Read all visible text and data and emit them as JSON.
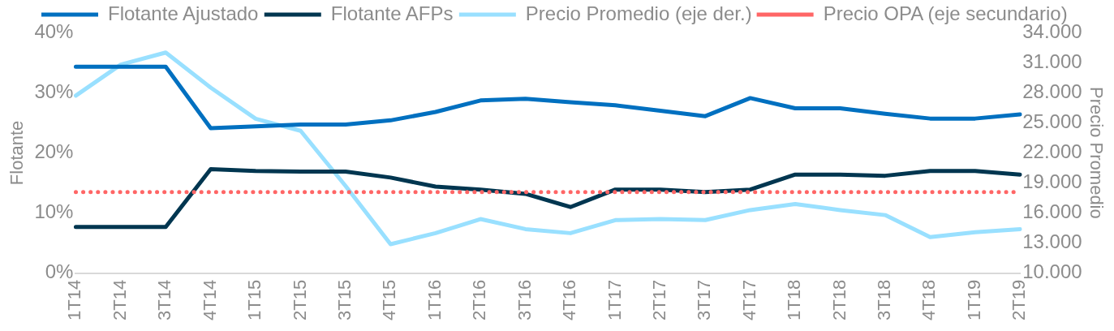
{
  "chart_data": {
    "type": "line",
    "ylabel": "Flotante",
    "y2label": "Precio Promedio",
    "categories": [
      "1T14",
      "2T14",
      "3T14",
      "4T14",
      "1T15",
      "2T15",
      "3T15",
      "4T15",
      "1T16",
      "2T16",
      "3T16",
      "4T16",
      "1T17",
      "2T17",
      "3T17",
      "4T17",
      "1T18",
      "2T18",
      "3T18",
      "4T18",
      "1T19",
      "2T19"
    ],
    "series": [
      {
        "name": "Flotante Ajustado",
        "color": "#0070c0",
        "values": [
          34.3,
          34.3,
          34.3,
          24.1,
          24.4,
          24.7,
          24.7,
          25.4,
          26.8,
          28.7,
          29.0,
          28.4,
          27.9,
          27.0,
          26.1,
          29.1,
          27.4,
          27.4,
          26.5,
          25.7,
          25.7,
          26.4
        ]
      },
      {
        "name": "Flotante AFPs",
        "color": "#003650",
        "values": [
          7.7,
          7.7,
          7.7,
          17.3,
          17.0,
          16.9,
          16.9,
          15.9,
          14.4,
          13.9,
          13.2,
          11.0,
          13.9,
          13.9,
          13.5,
          13.9,
          16.4,
          16.4,
          16.2,
          17.0,
          17.0,
          16.4
        ]
      },
      {
        "name": "Precio Promedio (eje der.)",
        "color": "#99e0ff",
        "axis": "y2",
        "values": [
          27700,
          30800,
          32000,
          28500,
          25400,
          24200,
          18700,
          12900,
          14000,
          15400,
          14400,
          14000,
          15300,
          15400,
          15300,
          16300,
          16900,
          16300,
          15800,
          13600,
          14100,
          14400
        ]
      },
      {
        "name": "Precio OPA (eje secundario)",
        "color": "#ff6666",
        "axis": "y2",
        "line_style": "dotted",
        "values": [
          18100,
          18100,
          18100,
          18100,
          18100,
          18100,
          18100,
          18100,
          18100,
          18100,
          18100,
          18100,
          18100,
          18100,
          18100,
          18100,
          18100,
          18100,
          18100,
          18100,
          18100,
          18100
        ]
      }
    ],
    "ylim": [
      0,
      40
    ],
    "yticks": [
      {
        "value": 0,
        "label": "0%"
      },
      {
        "value": 10,
        "label": "10%"
      },
      {
        "value": 20,
        "label": "20%"
      },
      {
        "value": 30,
        "label": "30%"
      },
      {
        "value": 40,
        "label": "40%"
      }
    ],
    "y2lim": [
      10000,
      34000
    ],
    "y2ticks": [
      {
        "value": 10000,
        "label": "10.000"
      },
      {
        "value": 13000,
        "label": "13.000"
      },
      {
        "value": 16000,
        "label": "16.000"
      },
      {
        "value": 19000,
        "label": "19.000"
      },
      {
        "value": 22000,
        "label": "22.000"
      },
      {
        "value": 25000,
        "label": "25.000"
      },
      {
        "value": 28000,
        "label": "28.000"
      },
      {
        "value": 31000,
        "label": "31.000"
      },
      {
        "value": 34000,
        "label": "34.000"
      }
    ],
    "grid": false,
    "legend": "top",
    "marker": "none",
    "line_style": "solid"
  }
}
